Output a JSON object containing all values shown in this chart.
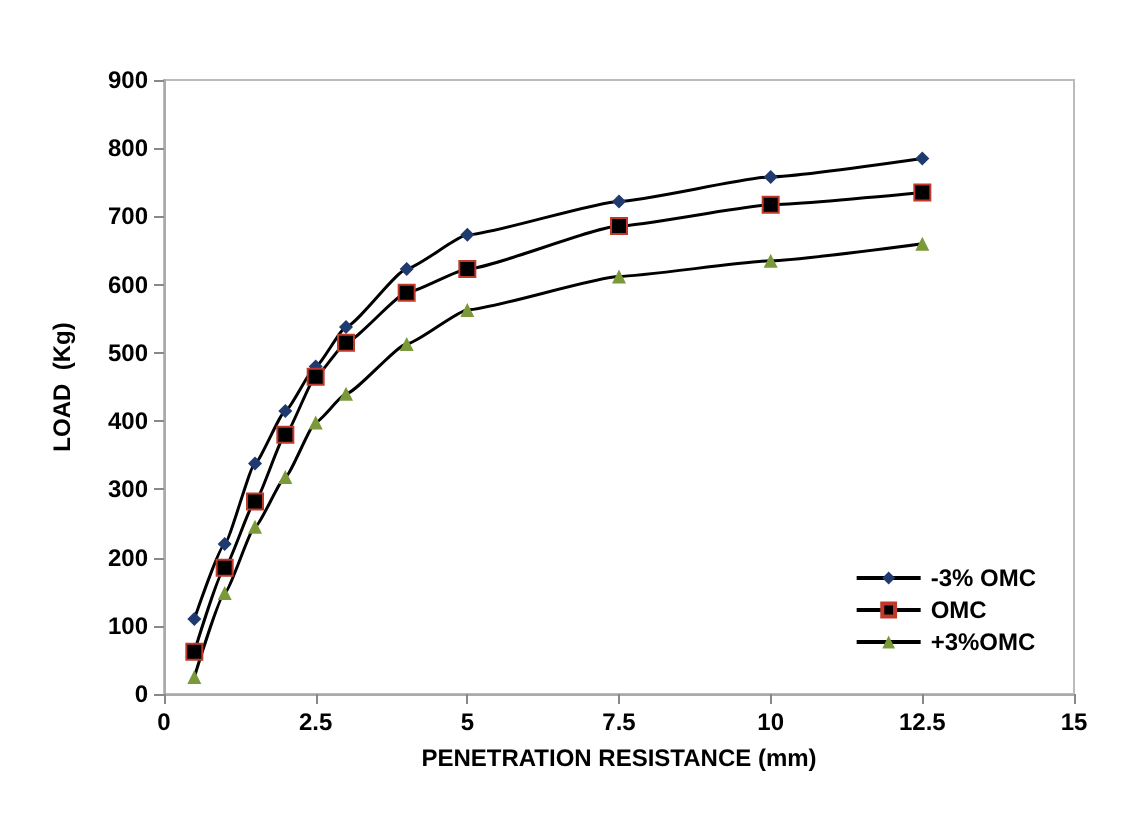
{
  "chart_data": {
    "type": "line",
    "xlabel": "PENETRATION RESISTANCE (mm)",
    "ylabel": "LOAD  (Kg)",
    "x": [
      0.5,
      1,
      1.5,
      2,
      2.5,
      3,
      4,
      5,
      7.5,
      10,
      12.5
    ],
    "series": [
      {
        "name": "-3% OMC",
        "color": "#1f3a6e",
        "marker": "diamond",
        "values": [
          110,
          220,
          338,
          415,
          480,
          538,
          623,
          673,
          722,
          758,
          785
        ]
      },
      {
        "name": "OMC",
        "color": "#c0392b",
        "marker": "square",
        "values": [
          62,
          185,
          282,
          380,
          465,
          515,
          588,
          623,
          686,
          717,
          735
        ]
      },
      {
        "name": "+3%OMC",
        "color": "#7a9a3a",
        "marker": "triangle",
        "values": [
          25,
          148,
          245,
          318,
          398,
          440,
          513,
          563,
          612,
          635,
          660
        ]
      }
    ],
    "xlim": [
      0,
      15
    ],
    "xticks": [
      0,
      2.5,
      5,
      7.5,
      10,
      12.5,
      15
    ],
    "ylim": [
      0,
      900
    ],
    "yticks": [
      0,
      100,
      200,
      300,
      400,
      500,
      600,
      700,
      800,
      900
    ],
    "grid": false,
    "legend": "bottom right",
    "line_style": "solid"
  }
}
